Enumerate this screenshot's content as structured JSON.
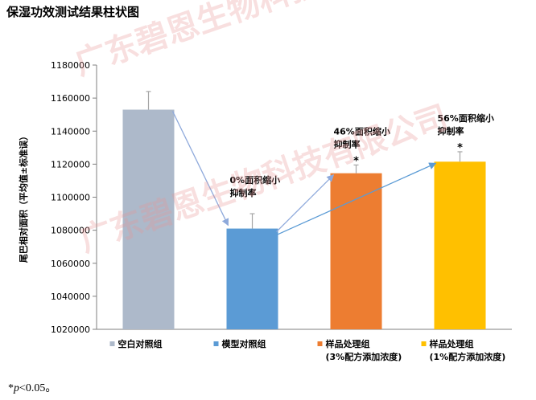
{
  "page_title": "保湿功效测试结果柱状图",
  "watermark": "广东碧恩生物科技有限公司",
  "footnote": {
    "symbol": "*",
    "p_italic": "p",
    "rest": "<0.05。"
  },
  "colors": {
    "axis": "#7f7f7f",
    "arrow": "#8ea9db",
    "errorbar": "#a6a6a6",
    "text": "#000000"
  },
  "chart_data": {
    "type": "bar",
    "ylabel": "尾巴相对面积（平均值±标准误）",
    "ylim": [
      1020000,
      1180000
    ],
    "yticks": [
      "1020000",
      "1040000",
      "1060000",
      "1080000",
      "1100000",
      "1120000",
      "1140000",
      "1160000",
      "1180000"
    ],
    "categories": [
      "空白对照组",
      "模型对照组",
      "样品处理组",
      "样品处理组"
    ],
    "category_sub": [
      "",
      "",
      "(3%配方添加浓度)",
      "(1%配方添加浓度)"
    ],
    "values": [
      1153000,
      1081000,
      1114500,
      1121500
    ],
    "errors": [
      11000,
      9000,
      5000,
      6000
    ],
    "bar_colors": [
      "#adb9ca",
      "#5b9bd5",
      "#ed7d31",
      "#ffc000"
    ],
    "annotations": [
      {
        "bar": 1,
        "line1": "0%面积缩小",
        "line2": "抑制率",
        "star": ""
      },
      {
        "bar": 2,
        "line1": "46%面积缩小",
        "line2": "抑制率",
        "star": "*"
      },
      {
        "bar": 3,
        "line1": "56%面积缩小",
        "line2": "抑制率",
        "star": "*"
      }
    ]
  }
}
